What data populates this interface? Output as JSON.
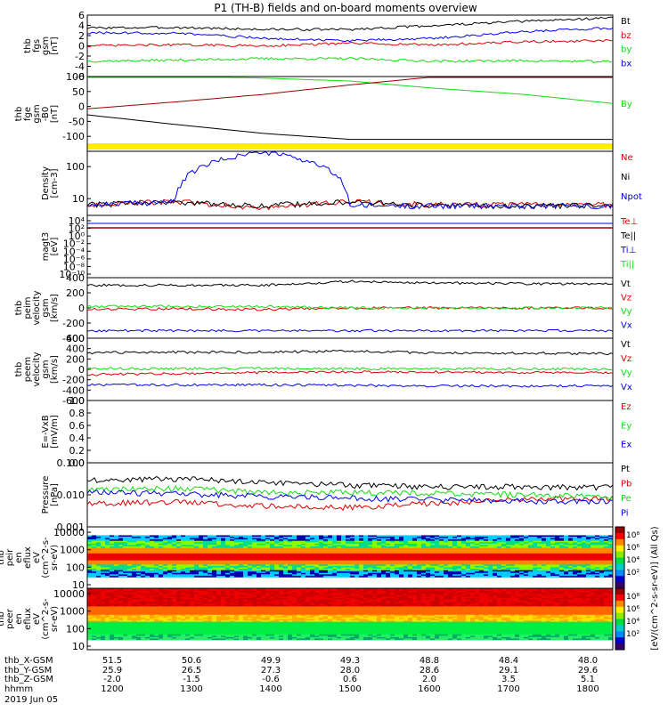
{
  "title": "P1 (TH-B) fields and on-board moments overview",
  "colors": {
    "black": "#000000",
    "red": "#dd0000",
    "green": "#11dd11",
    "blue": "#0000ee",
    "darkred": "#990000",
    "yellow": "#ffee00"
  },
  "chart_data": [
    {
      "type": "line",
      "ylabel": [
        "thb",
        "fgs",
        "gsm",
        "[nT]"
      ],
      "ylim": [
        -6,
        6
      ],
      "yticks": [
        "6",
        "4",
        "2",
        "0",
        "-2",
        "-4",
        "-6"
      ],
      "ytick_values": [
        6,
        4,
        2,
        0,
        -2,
        -4,
        -6
      ],
      "x": [
        "1200",
        "1300",
        "1400",
        "1500",
        "1600",
        "1700",
        "1800"
      ],
      "series": [
        {
          "name": "Bt",
          "color": "black",
          "values": [
            3.5,
            3.6,
            3.2,
            3.2,
            4.0,
            4.8,
            5.5
          ]
        },
        {
          "name": "bz",
          "color": "red",
          "values": [
            0.0,
            0.2,
            0.0,
            0.5,
            0.2,
            0.8,
            1.0
          ]
        },
        {
          "name": "by",
          "color": "green",
          "values": [
            -3.0,
            -2.8,
            -2.5,
            -2.5,
            -3.0,
            -2.9,
            -3.1
          ]
        },
        {
          "name": "bx",
          "color": "blue",
          "values": [
            2.5,
            2.5,
            1.5,
            1.0,
            1.5,
            2.8,
            3.5
          ]
        }
      ]
    },
    {
      "type": "line",
      "ylabel": [
        "thb",
        "fge",
        "gsm",
        "-B0",
        "[nT]"
      ],
      "ylim": [
        -150,
        100
      ],
      "yticks": [
        "100",
        "50",
        "0",
        "-50",
        "-100"
      ],
      "ytick_values": [
        100,
        50,
        0,
        -50,
        -100
      ],
      "x": [
        "1200",
        "1300",
        "1400",
        "1500",
        "1600",
        "1700",
        "1800"
      ],
      "series": [
        {
          "name": "By",
          "color": "green",
          "values": [
            100,
            100,
            95,
            85,
            60,
            40,
            10
          ]
        },
        {
          "name": "",
          "color": "darkred",
          "values": [
            -8,
            15,
            40,
            72,
            100,
            100,
            100
          ]
        },
        {
          "name": "",
          "color": "black",
          "values": [
            -28,
            -60,
            -90,
            -110,
            -110,
            -110,
            -110
          ]
        }
      ]
    },
    {
      "type": "line",
      "ylabel": [
        "Density",
        "[cm-3]"
      ],
      "ylim": [
        3,
        300
      ],
      "scale": "log",
      "yticks": [
        "100",
        "10"
      ],
      "ytick_values": [
        100,
        10
      ],
      "x": [
        "1200",
        "1300",
        "1400",
        "1500",
        "1600",
        "1700",
        "1800"
      ],
      "series": [
        {
          "name": "Ne",
          "color": "red",
          "values": [
            6.5,
            8,
            5,
            8,
            6.5,
            6.5,
            6.5
          ]
        },
        {
          "name": "Ni",
          "color": "black",
          "values": [
            6.5,
            8,
            6,
            8,
            6,
            6,
            6
          ]
        },
        {
          "name": "Npot",
          "color": "blue",
          "values": [
            6.5,
            8,
            300,
            6,
            6,
            6,
            6
          ]
        }
      ]
    },
    {
      "type": "line",
      "ylabel": [
        "magt3",
        "[eV]"
      ],
      "yticks": [
        "10⁴",
        "10²",
        "10⁰",
        "10⁻²",
        "10⁻⁴",
        "10⁻⁶",
        "10⁻⁸",
        "10⁻¹⁰"
      ],
      "series": [
        {
          "name": "Te⊥",
          "color": "red"
        },
        {
          "name": "Te||",
          "color": "black"
        },
        {
          "name": "Ti⊥",
          "color": "blue"
        },
        {
          "name": "Ti||",
          "color": "green"
        }
      ]
    },
    {
      "type": "line",
      "ylabel": [
        "thb",
        "peim",
        "velocity",
        "gsm",
        "[km/s]"
      ],
      "ylim": [
        -400,
        400
      ],
      "yticks": [
        "400",
        "200",
        "0",
        "-200",
        "-400"
      ],
      "ytick_values": [
        400,
        200,
        0,
        -200,
        -400
      ],
      "x": [
        "1200",
        "1300",
        "1400",
        "1500",
        "1600",
        "1700",
        "1800"
      ],
      "series": [
        {
          "name": "Vt",
          "color": "black",
          "values": [
            300,
            300,
            300,
            350,
            330,
            320,
            320
          ]
        },
        {
          "name": "Vz",
          "color": "red",
          "values": [
            -20,
            -10,
            -20,
            0,
            0,
            0,
            0
          ]
        },
        {
          "name": "Vy",
          "color": "green",
          "values": [
            20,
            20,
            20,
            0,
            0,
            0,
            0
          ]
        },
        {
          "name": "Vx",
          "color": "blue",
          "values": [
            -300,
            -300,
            -300,
            -300,
            -300,
            -300,
            -300
          ]
        }
      ]
    },
    {
      "type": "line",
      "ylabel": [
        "thb",
        "peem",
        "velocity",
        "gsm",
        "[km/s]"
      ],
      "ylim": [
        -600,
        600
      ],
      "yticks": [
        "600",
        "400",
        "200",
        "0",
        "-200",
        "-400",
        "-600"
      ],
      "ytick_values": [
        600,
        400,
        200,
        0,
        -200,
        -400,
        -600
      ],
      "x": [
        "1200",
        "1300",
        "1400",
        "1500",
        "1600",
        "1700",
        "1800"
      ],
      "series": [
        {
          "name": "Vt",
          "color": "black",
          "values": [
            320,
            330,
            330,
            350,
            320,
            310,
            300
          ]
        },
        {
          "name": "Vz",
          "color": "red",
          "values": [
            -100,
            -80,
            -60,
            -50,
            -50,
            -60,
            -70
          ]
        },
        {
          "name": "Vy",
          "color": "green",
          "values": [
            20,
            10,
            20,
            10,
            10,
            10,
            0
          ]
        },
        {
          "name": "Vx",
          "color": "blue",
          "values": [
            -300,
            -300,
            -300,
            -310,
            -320,
            -320,
            -310
          ]
        }
      ]
    },
    {
      "type": "line",
      "ylabel": [
        "E=-VxB",
        "[mV/m]"
      ],
      "ylim": [
        0,
        1
      ],
      "yticks": [
        "1.0",
        "0.8",
        "0.6",
        "0.4",
        "0.2",
        "0.0"
      ],
      "ytick_values": [
        1.0,
        0.8,
        0.6,
        0.4,
        0.2,
        0.0
      ],
      "series": [
        {
          "name": "Ez",
          "color": "red"
        },
        {
          "name": "Ey",
          "color": "green"
        },
        {
          "name": "Ex",
          "color": "blue"
        }
      ]
    },
    {
      "type": "line",
      "ylabel": [
        "Pressure",
        "[nPa]"
      ],
      "ylim": [
        0.001,
        0.1
      ],
      "scale": "log",
      "yticks": [
        "0.100",
        "0.010",
        "0.001"
      ],
      "ytick_values": [
        0.1,
        0.01,
        0.001
      ],
      "x": [
        "1200",
        "1300",
        "1400",
        "1500",
        "1600",
        "1700",
        "1800"
      ],
      "series": [
        {
          "name": "Pt",
          "color": "black",
          "values": [
            0.03,
            0.032,
            0.025,
            0.02,
            0.018,
            0.018,
            0.017
          ]
        },
        {
          "name": "Pb",
          "color": "red",
          "values": [
            0.0055,
            0.006,
            0.0045,
            0.004,
            0.0055,
            0.007,
            0.008
          ]
        },
        {
          "name": "Pe",
          "color": "green",
          "values": [
            0.015,
            0.016,
            0.012,
            0.012,
            0.011,
            0.01,
            0.009
          ]
        },
        {
          "name": "Pi",
          "color": "blue",
          "values": [
            0.012,
            0.011,
            0.009,
            0.008,
            0.007,
            0.0065,
            0.006
          ]
        }
      ]
    },
    {
      "type": "heatmap",
      "ylabel": [
        "thb",
        "peir",
        "en",
        "eflux",
        "eV",
        "(cm^2-s-",
        "sr-eV)"
      ],
      "scale": "log",
      "yticks": [
        "10000",
        "1000",
        "100",
        "10"
      ],
      "ytick_values": [
        10000,
        1000,
        100,
        10
      ]
    },
    {
      "type": "heatmap",
      "ylabel": [
        "thb",
        "peer",
        "en",
        "eflux",
        "eV",
        "(cm^2-s-",
        "sr-eV)"
      ],
      "scale": "log",
      "yticks": [
        "10000",
        "1000",
        "100",
        "10"
      ],
      "ytick_values": [
        10000,
        1000,
        100,
        10
      ]
    }
  ],
  "colorbar": {
    "ticks": [
      "10⁸",
      "10⁶",
      "10⁴",
      "10²",
      "10⁸",
      "10⁶",
      "10⁴",
      "10²"
    ],
    "label": "[eV/(cm^2-s-sr-eV)]  (All Qs)"
  },
  "x_axis": {
    "rows": [
      {
        "label": "thb_X-GSM",
        "values": [
          "51.5",
          "50.6",
          "49.9",
          "49.3",
          "48.8",
          "48.4",
          "48.0"
        ]
      },
      {
        "label": "thb_Y-GSM",
        "values": [
          "25.9",
          "26.5",
          "27.3",
          "28.0",
          "28.6",
          "29.1",
          "29.6"
        ]
      },
      {
        "label": "thb_Z-GSM",
        "values": [
          "-2.0",
          "-1.5",
          "-0.6",
          "0.6",
          "2.0",
          "3.5",
          "5.1"
        ]
      },
      {
        "label": "hhmm",
        "values": [
          "1200",
          "1300",
          "1400",
          "1500",
          "1600",
          "1700",
          "1800"
        ]
      }
    ],
    "date": "2019 Jun 05"
  }
}
